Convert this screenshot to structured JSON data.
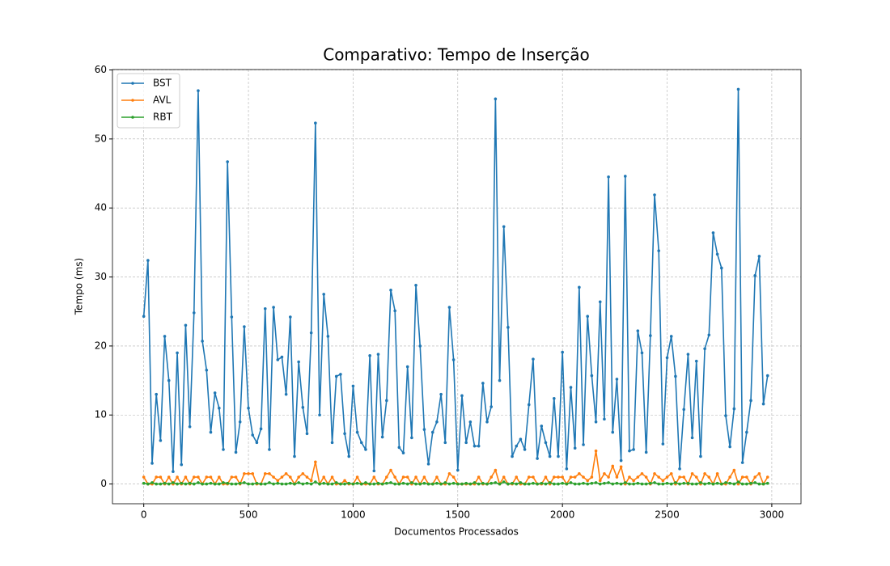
{
  "chart_data": {
    "type": "line",
    "title": "Comparativo: Tempo de Inserção",
    "xlabel": "Documentos Processados",
    "ylabel": "Tempo (ms)",
    "x": [
      0,
      20,
      40,
      60,
      80,
      100,
      120,
      140,
      160,
      180,
      200,
      220,
      240,
      260,
      280,
      300,
      320,
      340,
      360,
      380,
      400,
      420,
      440,
      460,
      480,
      500,
      520,
      540,
      560,
      580,
      600,
      620,
      640,
      660,
      680,
      700,
      720,
      740,
      760,
      780,
      800,
      820,
      840,
      860,
      880,
      900,
      920,
      940,
      960,
      980,
      1000,
      1020,
      1040,
      1060,
      1080,
      1100,
      1120,
      1140,
      1160,
      1180,
      1200,
      1220,
      1240,
      1260,
      1280,
      1300,
      1320,
      1340,
      1360,
      1380,
      1400,
      1420,
      1440,
      1460,
      1480,
      1500,
      1520,
      1540,
      1560,
      1580,
      1600,
      1620,
      1640,
      1660,
      1680,
      1700,
      1720,
      1740,
      1760,
      1780,
      1800,
      1820,
      1840,
      1860,
      1880,
      1900,
      1920,
      1940,
      1960,
      1980,
      2000,
      2020,
      2040,
      2060,
      2080,
      2100,
      2120,
      2140,
      2160,
      2180,
      2200,
      2220,
      2240,
      2260,
      2280,
      2300,
      2320,
      2340,
      2360,
      2380,
      2400,
      2420,
      2440,
      2460,
      2480,
      2500,
      2520,
      2540,
      2560,
      2580,
      2600,
      2620,
      2640,
      2660,
      2680,
      2700,
      2720,
      2740,
      2760,
      2780,
      2800,
      2820,
      2840,
      2860,
      2880,
      2900,
      2920,
      2940,
      2960,
      2980
    ],
    "series": [
      {
        "name": "BST",
        "color": "#1f77b4",
        "values": [
          24.3,
          32.4,
          3,
          13,
          6.3,
          21.4,
          15,
          1.8,
          19,
          2.8,
          23,
          8.3,
          24.8,
          57,
          20.7,
          16.5,
          7.5,
          13.2,
          11,
          5,
          46.7,
          24.2,
          4.6,
          9,
          22.8,
          11,
          7.1,
          6,
          8,
          25.4,
          5,
          25.6,
          18,
          18.4,
          13,
          24.2,
          4,
          17.7,
          11.1,
          7.3,
          21.9,
          52.3,
          10,
          27.5,
          21.4,
          6,
          15.6,
          15.9,
          7.3,
          4,
          14.2,
          7.5,
          6,
          5,
          18.6,
          1.9,
          18.8,
          6.8,
          12.1,
          28.1,
          25.1,
          5.3,
          4.5,
          17,
          6.7,
          28.8,
          20,
          7.9,
          2.9,
          7.5,
          9,
          13,
          6,
          25.6,
          18,
          2,
          12.8,
          6,
          9,
          5.5,
          5.5,
          14.6,
          9,
          11.2,
          55.8,
          15,
          37.3,
          22.7,
          4,
          5.5,
          6.5,
          5,
          11.5,
          18.1,
          3.7,
          8.4,
          6,
          4,
          12.4,
          4,
          19.1,
          2.2,
          14,
          5.2,
          28.5,
          5.7,
          24.3,
          15.7,
          9,
          26.4,
          9.4,
          44.5,
          7.5,
          15.2,
          3.4,
          44.6,
          4.8,
          5,
          22.2,
          19,
          4.6,
          21.5,
          41.9,
          33.8,
          5.8,
          18.3,
          21.4,
          15.6,
          2.2,
          10.8,
          18.8,
          6.7,
          17.8,
          4,
          19.6,
          21.6,
          36.4,
          33.3,
          31.3,
          9.9,
          5.4,
          10.9,
          57.2,
          3.1,
          7.5,
          12.1,
          30.2,
          33,
          11.6,
          15.7
        ]
      },
      {
        "name": "AVL",
        "color": "#ff7f0e",
        "values": [
          1,
          0,
          0,
          1,
          1,
          0,
          1,
          0,
          1,
          0,
          1,
          0,
          1,
          1,
          0,
          1,
          1,
          0,
          1,
          0,
          0,
          1,
          1,
          0,
          1.5,
          1.5,
          1.5,
          0,
          0,
          1.5,
          1.5,
          1,
          0.5,
          1,
          1.5,
          1,
          0,
          1,
          1.5,
          1,
          0.5,
          3.2,
          0,
          1,
          0,
          1,
          0,
          0,
          0.5,
          0,
          0,
          1,
          0,
          0,
          0,
          1,
          0,
          0,
          1,
          2,
          1,
          0,
          1,
          1,
          0,
          1,
          0,
          1,
          0,
          0,
          1,
          0,
          0,
          1.5,
          1,
          0,
          0,
          0,
          0,
          0,
          1,
          0,
          0,
          1,
          2,
          0,
          1,
          0,
          0,
          1,
          0,
          0,
          1,
          1,
          0,
          0,
          1,
          0,
          1,
          1,
          1,
          0,
          1,
          1,
          1.5,
          1,
          0.5,
          1,
          4.8,
          0.5,
          1.5,
          1,
          2.6,
          1,
          2.5,
          0,
          1,
          0.5,
          1,
          1.5,
          1,
          0,
          1.5,
          1,
          0.5,
          1,
          1.5,
          0,
          1,
          1,
          0,
          1.5,
          1,
          0,
          1.5,
          1,
          0,
          1.5,
          0,
          0,
          1,
          2,
          0,
          1,
          1,
          0,
          1,
          1.5,
          0,
          1
        ]
      },
      {
        "name": "RBT",
        "color": "#2ca02c",
        "values": [
          0.1,
          0,
          0.2,
          0,
          0,
          0.1,
          0,
          0.2,
          0,
          0.1,
          0,
          0.1,
          0,
          0.2,
          0,
          0,
          0.1,
          0,
          0,
          0.2,
          0.1,
          0,
          0,
          0.1,
          0.2,
          0,
          0,
          0.1,
          0,
          0,
          0.2,
          0,
          0.1,
          0,
          0,
          0.1,
          0,
          0.2,
          0,
          0.1,
          0,
          0.3,
          0,
          0.1,
          0,
          0,
          0.2,
          0,
          0,
          0.1,
          0,
          0.1,
          0,
          0.2,
          0,
          0,
          0.1,
          0,
          0.1,
          0.2,
          0,
          0,
          0.1,
          0,
          0.2,
          0,
          0,
          0.1,
          0,
          0,
          0.1,
          0,
          0.2,
          0,
          0.1,
          0,
          0,
          0.1,
          0,
          0.2,
          0,
          0.1,
          0,
          0.1,
          0.2,
          0,
          0.3,
          0,
          0.1,
          0,
          0.2,
          0,
          0,
          0.1,
          0,
          0.1,
          0,
          0.2,
          0,
          0,
          0.1,
          0,
          0.2,
          0,
          0,
          0.1,
          0,
          0.1,
          0.2,
          0,
          0.1,
          0.2,
          0,
          0.1,
          0,
          0.2,
          0,
          0,
          0.1,
          0,
          0,
          0.1,
          0.2,
          0,
          0,
          0.1,
          0,
          0.2,
          0,
          0.1,
          0.1,
          0,
          0,
          0.2,
          0,
          0.1,
          0,
          0.1,
          0,
          0.2,
          0.1,
          0,
          0.3,
          0,
          0,
          0.1,
          0.2,
          0,
          0,
          0.1
        ]
      }
    ],
    "xlim": [
      -149.5,
      3139.5
    ],
    "ylim": [
      -2.86,
      60.06
    ],
    "xticks": [
      0,
      500,
      1000,
      1500,
      2000,
      2500,
      3000
    ],
    "yticks": [
      0,
      10,
      20,
      30,
      40,
      50,
      60
    ],
    "grid": true,
    "legend": "upper-left"
  }
}
